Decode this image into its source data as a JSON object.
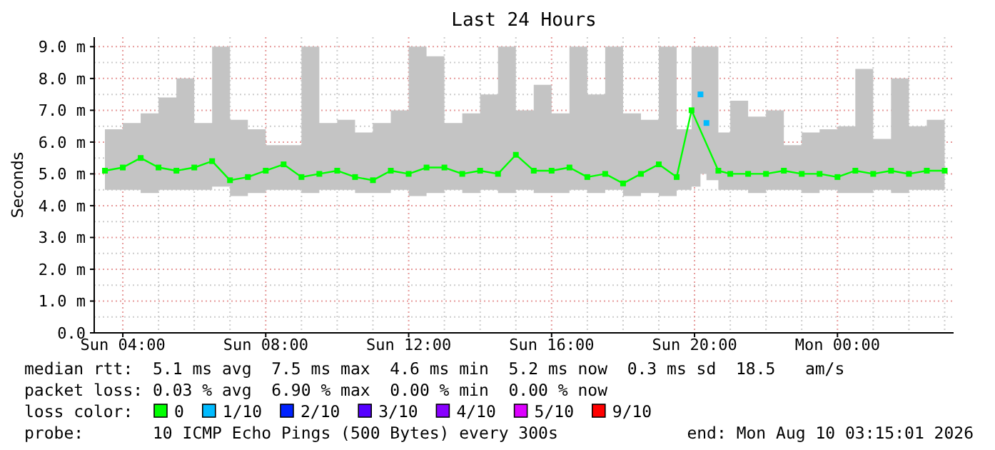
{
  "chart_data": {
    "type": "line",
    "title": "Last 24 Hours",
    "ylabel": "Seconds",
    "xlim": [
      "2026-08-09T03:12",
      "2026-08-10T03:15"
    ],
    "xticks": [
      {
        "value": "2026-08-09T04:00",
        "label": "Sun 04:00"
      },
      {
        "value": "2026-08-09T08:00",
        "label": "Sun 08:00"
      },
      {
        "value": "2026-08-09T12:00",
        "label": "Sun 12:00"
      },
      {
        "value": "2026-08-09T16:00",
        "label": "Sun 16:00"
      },
      {
        "value": "2026-08-09T20:00",
        "label": "Sun 20:00"
      },
      {
        "value": "2026-08-10T00:00",
        "label": "Mon 00:00"
      }
    ],
    "ylim": [
      0,
      9.3
    ],
    "yticks": [
      {
        "value": 0,
        "label": "0.0"
      },
      {
        "value": 1,
        "label": "1.0 m"
      },
      {
        "value": 2,
        "label": "2.0 m"
      },
      {
        "value": 3,
        "label": "3.0 m"
      },
      {
        "value": 4,
        "label": "4.0 m"
      },
      {
        "value": 5,
        "label": "5.0 m"
      },
      {
        "value": 6,
        "label": "6.0 m"
      },
      {
        "value": 7,
        "label": "7.0 m"
      },
      {
        "value": 8,
        "label": "8.0 m"
      },
      {
        "value": 9,
        "label": "9.0 m"
      }
    ],
    "grid": true,
    "legend": "bottom",
    "legend_title": "loss color:",
    "marker": "square",
    "line_style": "solid",
    "x": [
      "2026-08-09T03:30",
      "2026-08-09T04:00",
      "2026-08-09T04:30",
      "2026-08-09T05:00",
      "2026-08-09T05:30",
      "2026-08-09T06:00",
      "2026-08-09T06:30",
      "2026-08-09T07:00",
      "2026-08-09T07:30",
      "2026-08-09T08:00",
      "2026-08-09T08:30",
      "2026-08-09T09:00",
      "2026-08-09T09:30",
      "2026-08-09T10:00",
      "2026-08-09T10:30",
      "2026-08-09T11:00",
      "2026-08-09T11:30",
      "2026-08-09T12:00",
      "2026-08-09T12:30",
      "2026-08-09T13:00",
      "2026-08-09T13:30",
      "2026-08-09T14:00",
      "2026-08-09T14:30",
      "2026-08-09T15:00",
      "2026-08-09T15:30",
      "2026-08-09T16:00",
      "2026-08-09T16:30",
      "2026-08-09T17:00",
      "2026-08-09T17:30",
      "2026-08-09T18:00",
      "2026-08-09T18:30",
      "2026-08-09T19:00",
      "2026-08-09T19:30",
      "2026-08-09T19:55",
      "2026-08-09T20:10",
      "2026-08-09T20:20",
      "2026-08-09T20:40",
      "2026-08-09T21:00",
      "2026-08-09T21:30",
      "2026-08-09T22:00",
      "2026-08-09T22:30",
      "2026-08-09T23:00",
      "2026-08-09T23:30",
      "2026-08-10T00:00",
      "2026-08-10T00:30",
      "2026-08-10T01:00",
      "2026-08-10T01:30",
      "2026-08-10T02:00",
      "2026-08-10T02:30",
      "2026-08-10T03:00"
    ],
    "series": [
      {
        "name": "0",
        "color": "#00ff00",
        "values": [
          5.1,
          5.2,
          5.5,
          5.2,
          5.1,
          5.2,
          5.4,
          4.8,
          4.9,
          5.1,
          5.3,
          4.9,
          5.0,
          5.1,
          4.9,
          4.8,
          5.1,
          5.0,
          5.2,
          5.2,
          5.0,
          5.1,
          5.0,
          5.6,
          5.1,
          5.1,
          5.2,
          4.9,
          5.0,
          4.7,
          5.0,
          5.3,
          4.9,
          7.0,
          null,
          null,
          5.1,
          5.0,
          5.0,
          5.0,
          5.1,
          5.0,
          5.0,
          4.9,
          5.1,
          5.0,
          5.1,
          5.0,
          5.1,
          5.1
        ],
        "lower": [
          4.5,
          4.5,
          4.4,
          4.5,
          4.5,
          4.5,
          4.6,
          4.3,
          4.4,
          4.5,
          4.5,
          4.4,
          4.5,
          4.5,
          4.4,
          4.4,
          4.5,
          4.3,
          4.4,
          4.5,
          4.4,
          4.5,
          4.4,
          4.5,
          4.4,
          4.4,
          4.5,
          4.4,
          4.5,
          4.3,
          4.4,
          4.3,
          4.5,
          4.6,
          5.0,
          4.8,
          4.5,
          4.5,
          4.4,
          4.5,
          4.5,
          4.4,
          4.5,
          4.4,
          4.4,
          4.5,
          4.4,
          4.5,
          4.5,
          4.4
        ],
        "upper": [
          6.4,
          6.6,
          6.9,
          7.4,
          8.0,
          6.6,
          9.0,
          6.7,
          6.4,
          5.9,
          5.9,
          9.0,
          6.6,
          6.7,
          6.3,
          6.6,
          7.0,
          9.0,
          8.7,
          6.6,
          6.9,
          7.5,
          9.0,
          7.0,
          7.8,
          6.9,
          9.0,
          7.5,
          9.0,
          6.9,
          6.7,
          9.0,
          6.4,
          9.0,
          9.0,
          9.0,
          6.3,
          7.3,
          6.8,
          7.0,
          5.9,
          6.3,
          6.4,
          6.5,
          8.3,
          6.1,
          8.0,
          6.5,
          6.7,
          6.3
        ]
      },
      {
        "name": "1/10",
        "type": "scatter",
        "color": "#00bbff",
        "x": [
          "2026-08-09T20:10",
          "2026-08-09T20:20"
        ],
        "values": [
          7.5,
          6.6
        ]
      },
      {
        "name": "2/10",
        "type": "scatter",
        "color": "#0022ff",
        "values": [
          null,
          null,
          null,
          null,
          null,
          null,
          null,
          null,
          null,
          null,
          null,
          null,
          null,
          null,
          null,
          null,
          null,
          null,
          null,
          null,
          null,
          null,
          null,
          null,
          null,
          null,
          null,
          null,
          null,
          null,
          null,
          null,
          null,
          null,
          null,
          null,
          null,
          null,
          null,
          null,
          null,
          null,
          null,
          null,
          null,
          null,
          null,
          null,
          null,
          null
        ]
      },
      {
        "name": "3/10",
        "type": "scatter",
        "color": "#5500ff",
        "values": [
          null,
          null,
          null,
          null,
          null,
          null,
          null,
          null,
          null,
          null,
          null,
          null,
          null,
          null,
          null,
          null,
          null,
          null,
          null,
          null,
          null,
          null,
          null,
          null,
          null,
          null,
          null,
          null,
          null,
          null,
          null,
          null,
          null,
          null,
          null,
          null,
          null,
          null,
          null,
          null,
          null,
          null,
          null,
          null,
          null,
          null,
          null,
          null,
          null,
          null
        ]
      },
      {
        "name": "4/10",
        "type": "scatter",
        "color": "#8800ff",
        "values": [
          null,
          null,
          null,
          null,
          null,
          null,
          null,
          null,
          null,
          null,
          null,
          null,
          null,
          null,
          null,
          null,
          null,
          null,
          null,
          null,
          null,
          null,
          null,
          null,
          null,
          null,
          null,
          null,
          null,
          null,
          null,
          null,
          null,
          null,
          null,
          null,
          null,
          null,
          null,
          null,
          null,
          null,
          null,
          null,
          null,
          null,
          null,
          null,
          null,
          null
        ]
      },
      {
        "name": "5/10",
        "type": "scatter",
        "color": "#dd00ff",
        "values": [
          null,
          null,
          null,
          null,
          null,
          null,
          null,
          null,
          null,
          null,
          null,
          null,
          null,
          null,
          null,
          null,
          null,
          null,
          null,
          null,
          null,
          null,
          null,
          null,
          null,
          null,
          null,
          null,
          null,
          null,
          null,
          null,
          null,
          null,
          null,
          null,
          null,
          null,
          null,
          null,
          null,
          null,
          null,
          null,
          null,
          null,
          null,
          null,
          null,
          null
        ]
      },
      {
        "name": "9/10",
        "type": "scatter",
        "color": "#ff0000",
        "values": [
          null,
          null,
          null,
          null,
          null,
          null,
          null,
          null,
          null,
          null,
          null,
          null,
          null,
          null,
          null,
          null,
          null,
          null,
          null,
          null,
          null,
          null,
          null,
          null,
          null,
          null,
          null,
          null,
          null,
          null,
          null,
          null,
          null,
          null,
          null,
          null,
          null,
          null,
          null,
          null,
          null,
          null,
          null,
          null,
          null,
          null,
          null,
          null,
          null,
          null
        ]
      }
    ],
    "annotations": [
      "median rtt:  5.1 ms avg  7.5 ms max  4.6 ms min  5.2 ms now  0.3 ms sd  18.5   am/s",
      "packet loss: 0.03 % avg  6.90 % max  0.00 % min  0.00 % now",
      "probe:       10 ICMP Echo Pings (500 Bytes) every 300s",
      "end: Mon Aug 10 03:15:01 2026"
    ]
  }
}
